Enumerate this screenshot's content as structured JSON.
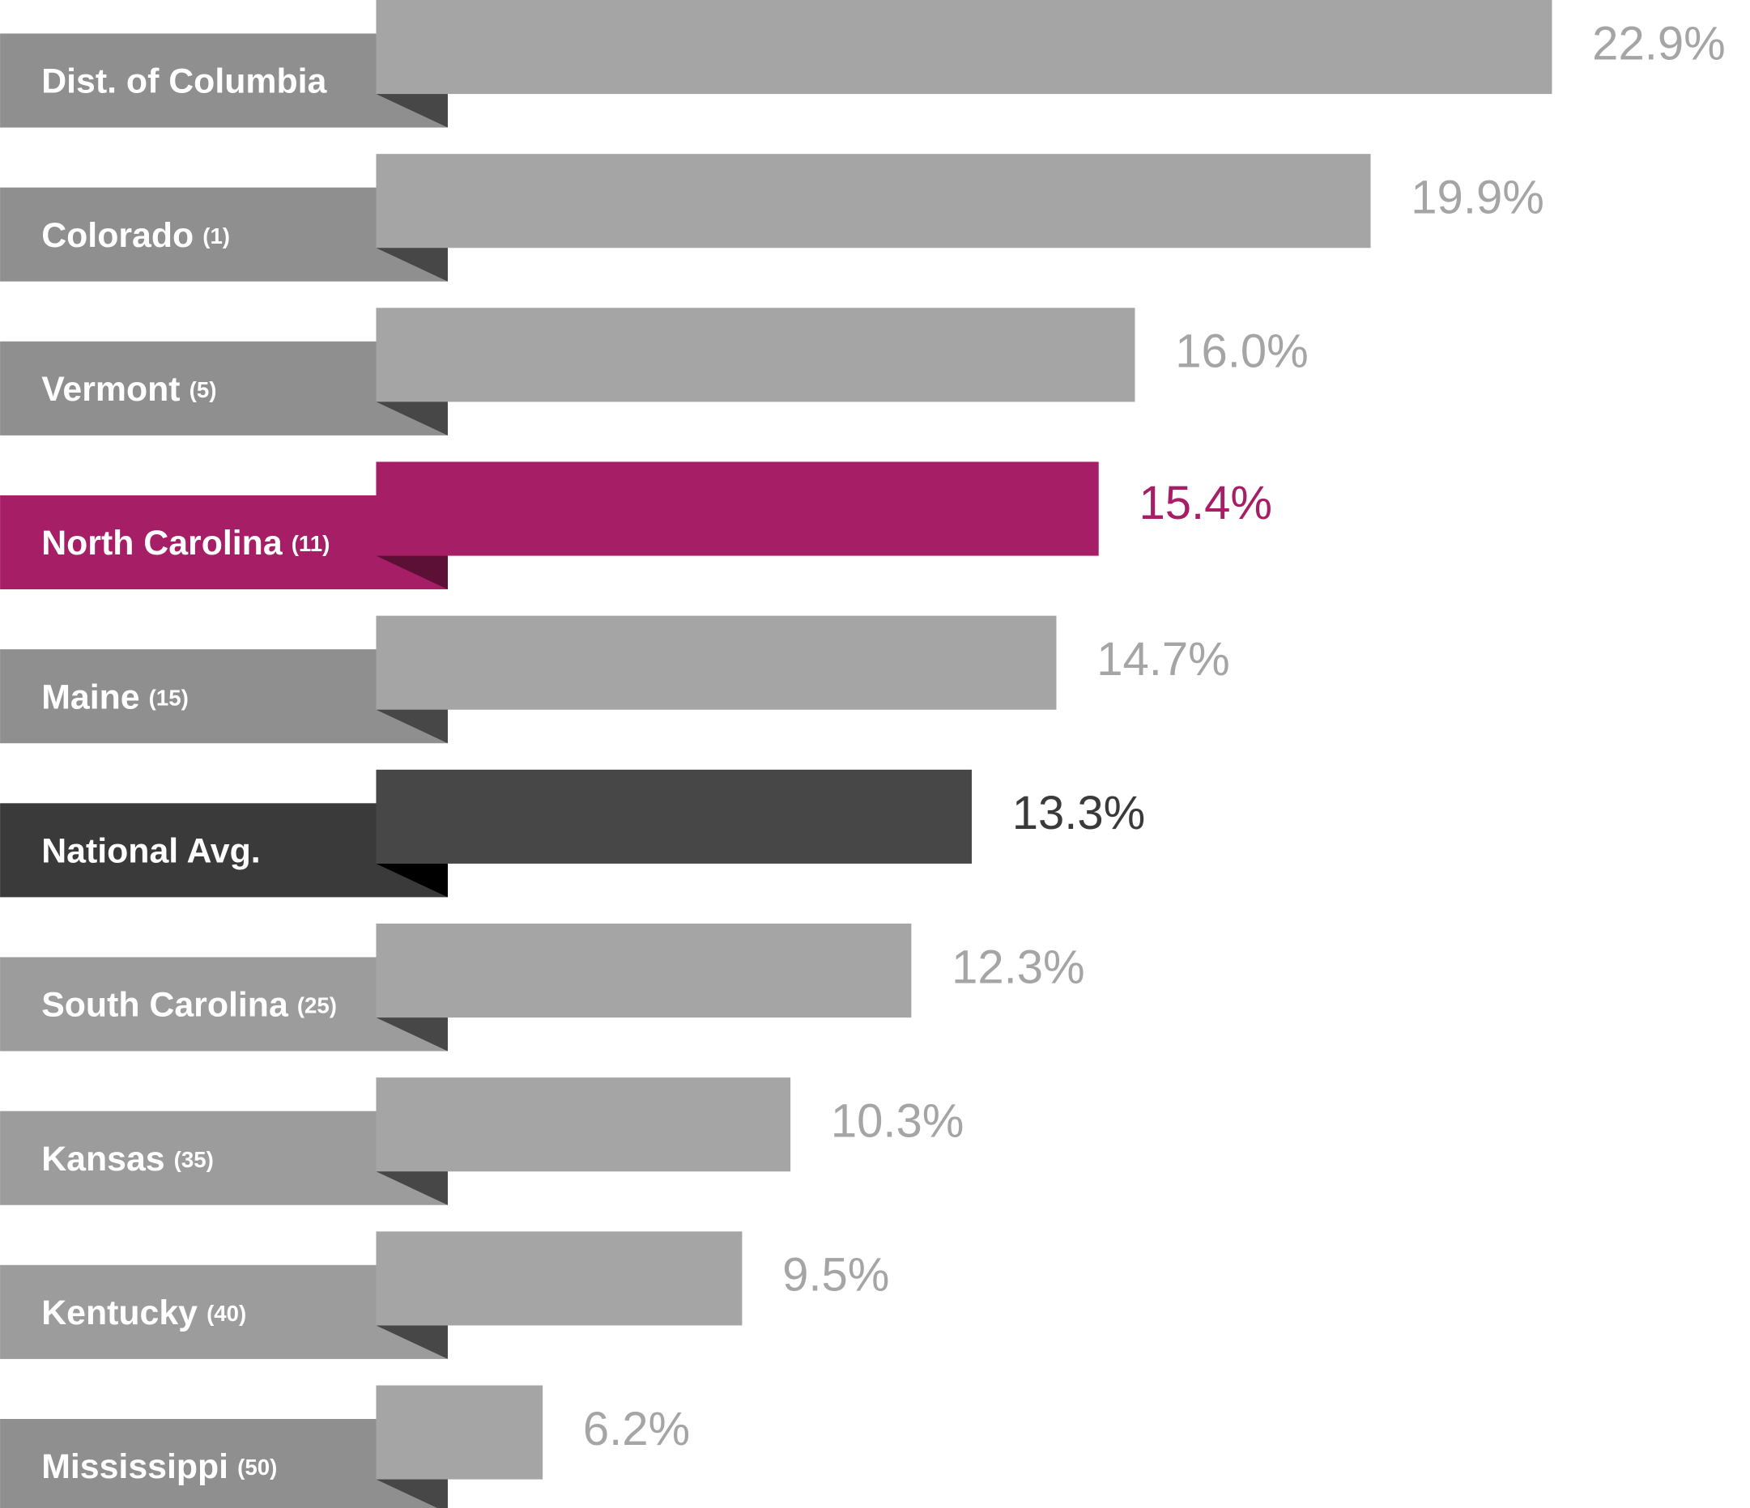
{
  "chart_data": {
    "type": "bar",
    "orientation": "horizontal",
    "categories": [
      "Dist. of Columbia",
      "Colorado",
      "Vermont",
      "North Carolina",
      "Maine",
      "National Avg.",
      "South Carolina",
      "Kansas",
      "Kentucky",
      "Mississippi"
    ],
    "ranks": [
      null,
      "(1)",
      "(5)",
      "(11)",
      "(15)",
      null,
      "(25)",
      "(35)",
      "(40)",
      "(50)"
    ],
    "values": [
      22.9,
      19.9,
      16.0,
      15.4,
      14.7,
      13.3,
      12.3,
      10.3,
      9.5,
      6.2
    ],
    "value_labels": [
      "22.9%",
      "19.9%",
      "16.0%",
      "15.4%",
      "14.7%",
      "13.3%",
      "12.3%",
      "10.3%",
      "9.5%",
      "6.2%"
    ],
    "colors": [
      "#a5a5a5",
      "#a5a5a5",
      "#a5a5a5",
      "#a61e65",
      "#a5a5a5",
      "#474747",
      "#a5a5a5",
      "#a5a5a5",
      "#a5a5a5",
      "#a5a5a5"
    ],
    "label_colors": [
      "#8f8f8f",
      "#8f8f8f",
      "#8f8f8f",
      "#a61e65",
      "#8f8f8f",
      "#3a3a3a",
      "#9c9c9c",
      "#9c9c9c",
      "#9c9c9c",
      "#8f8f8f"
    ],
    "fold_colors": [
      "#474747",
      "#474747",
      "#474747",
      "#5c1036",
      "#474747",
      "#000000",
      "#474747",
      "#474747",
      "#474747",
      "#474747"
    ],
    "value_label_colors": [
      "#a5a5a5",
      "#a5a5a5",
      "#a5a5a5",
      "#a61e65",
      "#a5a5a5",
      "#3a3a3a",
      "#a5a5a5",
      "#a5a5a5",
      "#a5a5a5",
      "#a5a5a5"
    ],
    "highlight": "North Carolina"
  }
}
